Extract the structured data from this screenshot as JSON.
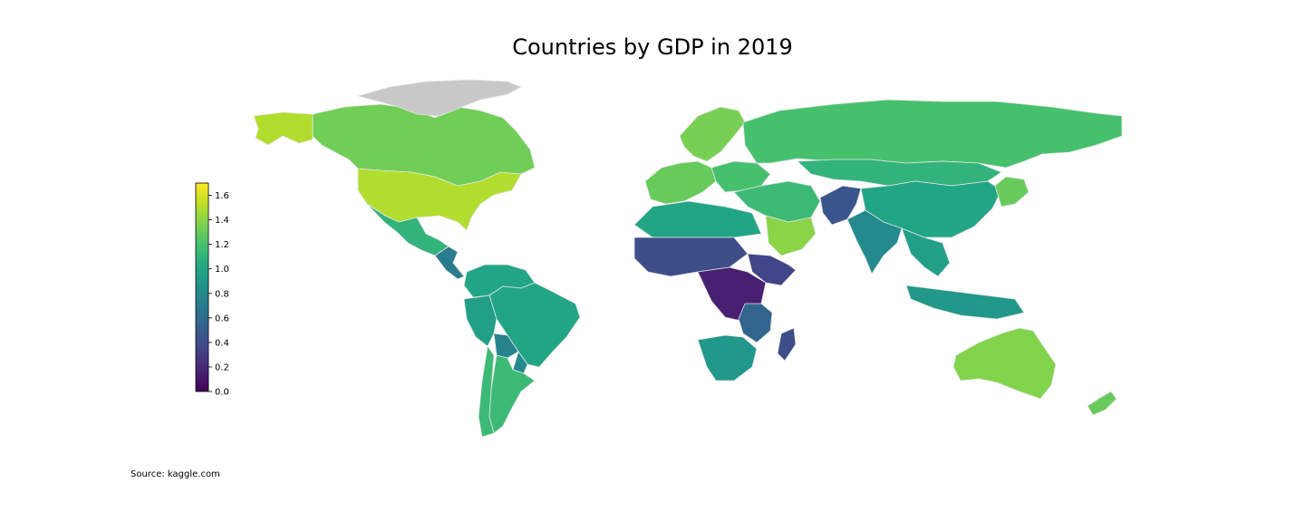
{
  "title": "Countries by GDP in 2019",
  "source": "Source: kaggle.com",
  "colorbar": {
    "colormap": "viridis",
    "min": 0.0,
    "max": 1.7,
    "ticks": [
      "0.0",
      "0.2",
      "0.4",
      "0.6",
      "0.8",
      "1.0",
      "1.2",
      "1.4",
      "1.6"
    ]
  },
  "colors": {
    "missing": "#c8c8c8",
    "border": "#e6e6e6"
  },
  "chart_data": {
    "type": "choropleth",
    "title": "Countries by GDP in 2019",
    "value_range": [
      0.0,
      1.7
    ],
    "regions": [
      {
        "region": "United States",
        "value": 1.5
      },
      {
        "region": "Canada",
        "value": 1.33
      },
      {
        "region": "Alaska",
        "value": 1.5
      },
      {
        "region": "Greenland",
        "value": null
      },
      {
        "region": "Mexico",
        "value": 1.1
      },
      {
        "region": "Central America",
        "value": 0.7
      },
      {
        "region": "Colombia / Venezuela",
        "value": 1.0
      },
      {
        "region": "Brazil",
        "value": 1.0
      },
      {
        "region": "Peru",
        "value": 0.95
      },
      {
        "region": "Bolivia",
        "value": 0.75
      },
      {
        "region": "Paraguay",
        "value": 0.8
      },
      {
        "region": "Argentina",
        "value": 1.15
      },
      {
        "region": "Chile",
        "value": 1.15
      },
      {
        "region": "Western Europe",
        "value": 1.3
      },
      {
        "region": "Scandinavia",
        "value": 1.35
      },
      {
        "region": "Eastern Europe",
        "value": 1.2
      },
      {
        "region": "Russia",
        "value": 1.2
      },
      {
        "region": "Kazakhstan / Mongolia",
        "value": 1.1
      },
      {
        "region": "China",
        "value": 1.0
      },
      {
        "region": "India",
        "value": 0.8
      },
      {
        "region": "Afghanistan / Pakistan",
        "value": 0.45
      },
      {
        "region": "Middle East",
        "value": 1.15
      },
      {
        "region": "Saudi Arabia",
        "value": 1.4
      },
      {
        "region": "North Africa",
        "value": 1.0
      },
      {
        "region": "Sahel",
        "value": 0.4
      },
      {
        "region": "Central Africa",
        "value": 0.15
      },
      {
        "region": "Horn of Africa",
        "value": 0.35
      },
      {
        "region": "East Africa",
        "value": 0.55
      },
      {
        "region": "Southern Africa",
        "value": 0.9
      },
      {
        "region": "Madagascar",
        "value": 0.4
      },
      {
        "region": "Southeast Asia",
        "value": 0.95
      },
      {
        "region": "Indonesia",
        "value": 0.9
      },
      {
        "region": "Japan",
        "value": 1.3
      },
      {
        "region": "Australia",
        "value": 1.38
      },
      {
        "region": "New Zealand",
        "value": 1.3
      }
    ]
  }
}
